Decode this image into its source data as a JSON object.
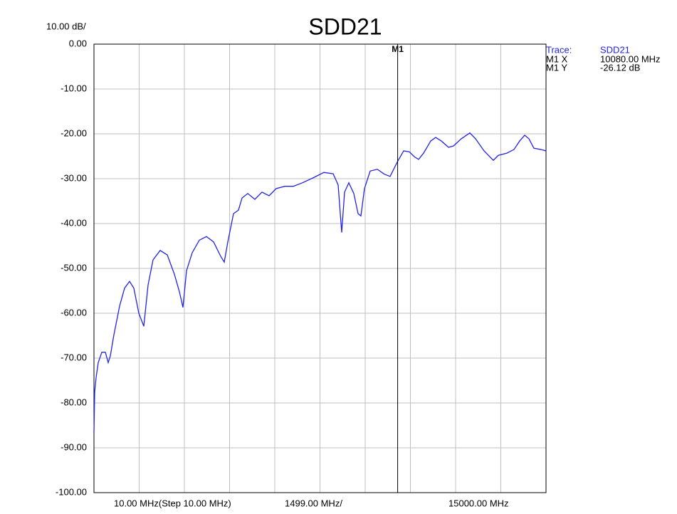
{
  "chart_data": {
    "type": "line",
    "title": "SDD21",
    "scale_label": "10.00 dB/",
    "x_labels": [
      "10.00 MHz(Step 10.00 MHz)",
      "1499.00 MHz/",
      "15000.00 MHz"
    ],
    "xlim": [
      10,
      15000
    ],
    "xticks": [
      10,
      1509,
      3008,
      4507,
      6006,
      7505,
      9004,
      10503,
      12002,
      13501,
      15000
    ],
    "ylim": [
      -100,
      0
    ],
    "yticks": [
      {
        "value": 0,
        "label": "0.00"
      },
      {
        "value": -10,
        "label": "-10.00"
      },
      {
        "value": -20,
        "label": "-20.00"
      },
      {
        "value": -30,
        "label": "-30.00"
      },
      {
        "value": -40,
        "label": "-40.00"
      },
      {
        "value": -50,
        "label": "-50.00"
      },
      {
        "value": -60,
        "label": "-60.00"
      },
      {
        "value": -70,
        "label": "-70.00"
      },
      {
        "value": -80,
        "label": "-80.00"
      },
      {
        "value": -90,
        "label": "-90.00"
      },
      {
        "value": -100,
        "label": "-100.00"
      }
    ],
    "grid": true,
    "series": [
      {
        "name": "SDD21",
        "color": "#2323e6",
        "x": [
          10,
          34,
          81,
          152,
          270,
          388,
          482,
          553,
          671,
          860,
          1025,
          1190,
          1332,
          1497,
          1662,
          1804,
          1969,
          2205,
          2441,
          2677,
          2843,
          2961,
          3079,
          3268,
          3504,
          3740,
          3976,
          4212,
          4330,
          4448,
          4637,
          4802,
          4920,
          5109,
          5345,
          5581,
          5817,
          6053,
          6337,
          6620,
          6927,
          7281,
          7635,
          7942,
          8107,
          8225,
          8320,
          8461,
          8626,
          8768,
          8862,
          8980,
          9169,
          9405,
          9641,
          9830,
          10080,
          10279,
          10467,
          10633,
          10774,
          10940,
          11176,
          11341,
          11530,
          11766,
          11931,
          12191,
          12474,
          12663,
          12946,
          13253,
          13418,
          13701,
          13937,
          14126,
          14292,
          14433,
          14598,
          14834,
          15000
        ],
        "values": [
          -86.5,
          -77.5,
          -74.3,
          -71,
          -68.7,
          -68.7,
          -71,
          -69.5,
          -64.8,
          -58.4,
          -54.4,
          -52.9,
          -54.4,
          -60,
          -62.9,
          -53.7,
          -48.1,
          -46,
          -47,
          -51.3,
          -55.2,
          -58.7,
          -50.5,
          -46.5,
          -43.7,
          -42.9,
          -44.1,
          -47.3,
          -48.6,
          -44.1,
          -37.8,
          -37,
          -34.3,
          -33.3,
          -34.6,
          -33,
          -33.8,
          -32.2,
          -31.7,
          -31.7,
          -30.9,
          -29.8,
          -28.6,
          -28.9,
          -31.4,
          -42,
          -33,
          -30.9,
          -33.3,
          -37.8,
          -38.3,
          -32.2,
          -28.3,
          -27.9,
          -29,
          -29.5,
          -26.12,
          -23.8,
          -24,
          -25.1,
          -25.7,
          -24.3,
          -21.6,
          -20.8,
          -21.6,
          -23,
          -22.7,
          -21.1,
          -19.8,
          -21.1,
          -23.8,
          -25.9,
          -24.8,
          -24.3,
          -23.5,
          -21.6,
          -20.3,
          -21.1,
          -23.2,
          -23.5,
          -23.8
        ]
      }
    ],
    "legend": {
      "trace_key": "Trace:",
      "trace_name": "SDD21",
      "x_key": "M1 X",
      "y_key": "M1 Y"
    },
    "marker": {
      "label": "M1",
      "x": 10080,
      "y": -26.12,
      "x_label": "10080.00 MHz",
      "y_label": "-26.12 dB"
    }
  }
}
